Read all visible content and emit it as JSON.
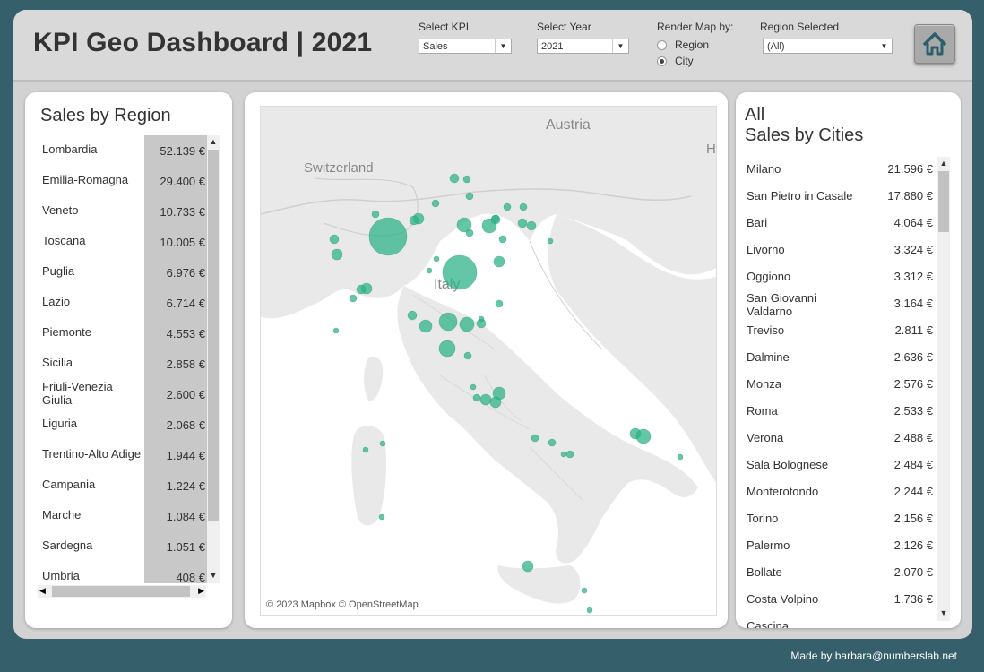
{
  "header": {
    "title": "KPI Geo Dashboard | 2021",
    "kpi_label": "Select KPI",
    "kpi_value": "Sales",
    "year_label": "Select Year",
    "year_value": "2021",
    "render_label": "Render Map by:",
    "render_options": [
      "Region",
      "City"
    ],
    "render_selected": "City",
    "region_label": "Region Selected",
    "region_value": "(All)"
  },
  "left_panel": {
    "title": "Sales by Region",
    "rows": [
      {
        "name": "Lombardia",
        "value": "52.139 €"
      },
      {
        "name": "Emilia-Romagna",
        "value": "29.400 €"
      },
      {
        "name": "Veneto",
        "value": "10.733 €"
      },
      {
        "name": "Toscana",
        "value": "10.005 €"
      },
      {
        "name": "Puglia",
        "value": "6.976 €"
      },
      {
        "name": "Lazio",
        "value": "6.714 €"
      },
      {
        "name": "Piemonte",
        "value": "4.553 €"
      },
      {
        "name": "Sicilia",
        "value": "2.858 €"
      },
      {
        "name": "Friuli-Venezia Giulia",
        "value": "2.600 €"
      },
      {
        "name": "Liguria",
        "value": "2.068 €"
      },
      {
        "name": "Trentino-Alto Adige",
        "value": "1.944 €"
      },
      {
        "name": "Campania",
        "value": "1.224 €"
      },
      {
        "name": "Marche",
        "value": "1.084 €"
      },
      {
        "name": "Sardegna",
        "value": "1.051 €"
      },
      {
        "name": "Umbria",
        "value": "408 €"
      }
    ]
  },
  "map": {
    "labels": {
      "austria": "Austria",
      "switzerland": "Switzerland",
      "italy": "Italy",
      "edge": "H"
    },
    "credit": "© 2023 Mapbox © OpenStreetMap",
    "colors": {
      "bubble": "#2fb38a",
      "land": "#e9e9e9",
      "sea": "#ffffff"
    }
  },
  "right_panel": {
    "title_line1": "All",
    "title_line2": "Sales by Cities",
    "rows": [
      {
        "name": "Milano",
        "value": "21.596 €"
      },
      {
        "name": "San Pietro in Casale",
        "value": "17.880 €"
      },
      {
        "name": "Bari",
        "value": "4.064 €"
      },
      {
        "name": "Livorno",
        "value": "3.324 €"
      },
      {
        "name": "Oggiono",
        "value": "3.312 €"
      },
      {
        "name": "San Giovanni Valdarno",
        "value": "3.164 €"
      },
      {
        "name": "Treviso",
        "value": "2.811 €"
      },
      {
        "name": "Dalmine",
        "value": "2.636 €"
      },
      {
        "name": "Monza",
        "value": "2.576 €"
      },
      {
        "name": "Roma",
        "value": "2.533 €"
      },
      {
        "name": "Verona",
        "value": "2.488 €"
      },
      {
        "name": "Sala Bolognese",
        "value": "2.484 €"
      },
      {
        "name": "Monterotondo",
        "value": "2.244 €"
      },
      {
        "name": "Torino",
        "value": "2.156 €"
      },
      {
        "name": "Palermo",
        "value": "2.126 €"
      },
      {
        "name": "Bollate",
        "value": "2.070 €"
      },
      {
        "name": "Costa Volpino",
        "value": "1.736 €"
      },
      {
        "name": "Cascina",
        "value": ""
      }
    ]
  },
  "footer": {
    "credit": "Made by barbara@numberslab.net"
  },
  "theme": {
    "background": "#355f6b",
    "highlight": "#c8c8c8"
  }
}
